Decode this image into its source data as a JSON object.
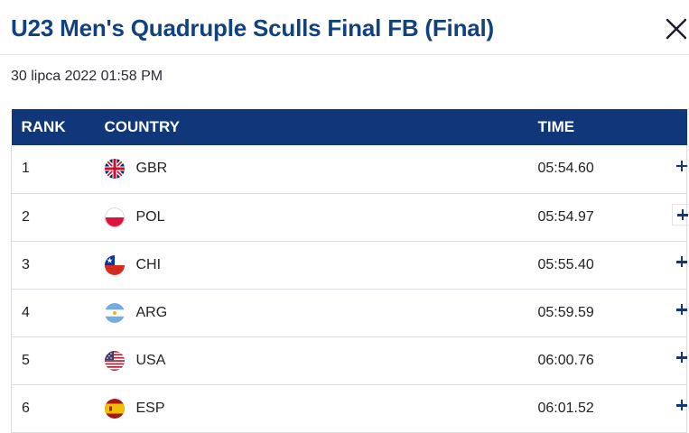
{
  "header": {
    "title": "U23 Men's Quadruple Sculls Final FB (Final)",
    "datetime": "30 lipca 2022 01:58 PM",
    "close_icon": "close-icon"
  },
  "table": {
    "columns": {
      "rank": "RANK",
      "country": "COUNTRY",
      "time": "TIME"
    },
    "rows": [
      {
        "rank": "1",
        "country": "GBR",
        "flag": "gbr-flag-icon",
        "time": "05:54.60"
      },
      {
        "rank": "2",
        "country": "POL",
        "flag": "pol-flag-icon",
        "time": "05:54.97"
      },
      {
        "rank": "3",
        "country": "CHI",
        "flag": "chi-flag-icon",
        "time": "05:55.40"
      },
      {
        "rank": "4",
        "country": "ARG",
        "flag": "arg-flag-icon",
        "time": "05:59.59"
      },
      {
        "rank": "5",
        "country": "USA",
        "flag": "usa-flag-icon",
        "time": "06:00.76"
      },
      {
        "rank": "6",
        "country": "ESP",
        "flag": "esp-flag-icon",
        "time": "06:01.52"
      }
    ],
    "expand_icon": "plus-icon"
  },
  "colors": {
    "brand": "#10377a",
    "title": "#11427d"
  }
}
